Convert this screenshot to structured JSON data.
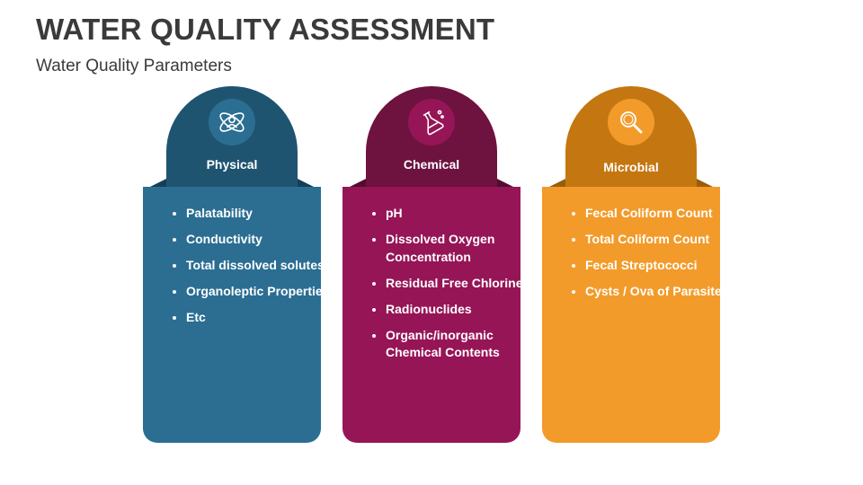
{
  "header": {
    "title": "WATER QUALITY ASSESSMENT",
    "subtitle": "Water Quality Parameters"
  },
  "cards": [
    {
      "label": "Physical",
      "icon": "atom-person-icon",
      "colors": {
        "tab": "#1f5471",
        "body": "#2b6e92"
      },
      "items": [
        "Palatability",
        "Conductivity",
        "Total dissolved solutes",
        "Organoleptic Properties",
        "Etc"
      ]
    },
    {
      "label": "Chemical",
      "icon": "flask-icon",
      "colors": {
        "tab": "#6e1240",
        "body": "#961556"
      },
      "items": [
        "pH",
        "Dissolved Oxygen Concentration",
        "Residual Free Chlorine",
        "Radionuclides",
        "Organic/inorganic Chemical Contents"
      ]
    },
    {
      "label": "Microbial",
      "icon": "magnifier-icon",
      "colors": {
        "tab": "#c47710",
        "body": "#f29b2a"
      },
      "items": [
        "Fecal Coliform Count",
        "Total Coliform Count",
        "Fecal Streptococci",
        "Cysts / Ova of Parasites"
      ]
    }
  ]
}
